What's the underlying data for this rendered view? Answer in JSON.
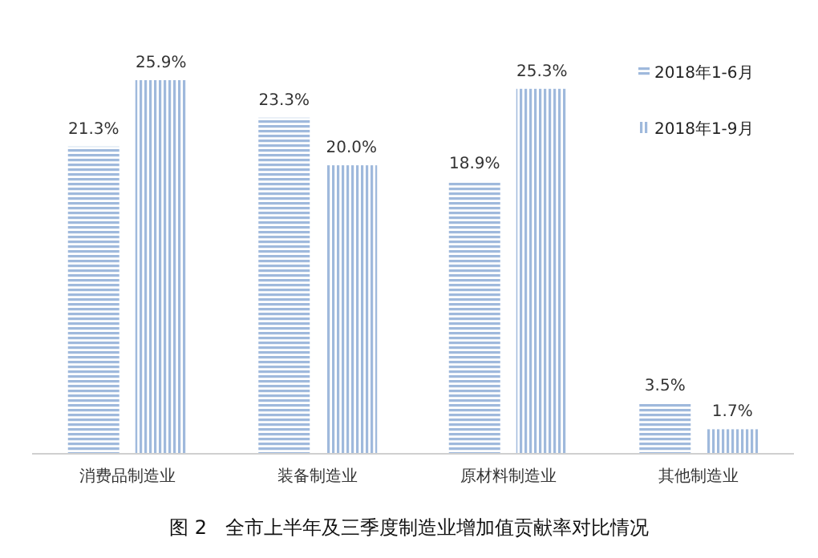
{
  "chart_data": {
    "type": "bar",
    "title": "图 2   全市上半年及三季度制造业增加值贡献率对比情况",
    "categories": [
      "消费品制造业",
      "装备制造业",
      "原材料制造业",
      "其他制造业"
    ],
    "series": [
      {
        "name": "2018年1-6月",
        "color": "#9fb9dc",
        "values": [
          21.3,
          23.3,
          18.9,
          3.5
        ],
        "value_labels": [
          "21.3%",
          "23.3%",
          "18.9%",
          "3.5%"
        ]
      },
      {
        "name": "2018年1-9月",
        "color": "#9fb9dc",
        "values": [
          25.9,
          20.0,
          25.3,
          1.7
        ],
        "value_labels": [
          "25.9%",
          "20.0%",
          "25.3%",
          "1.7%"
        ]
      }
    ],
    "legend": "top right"
  }
}
